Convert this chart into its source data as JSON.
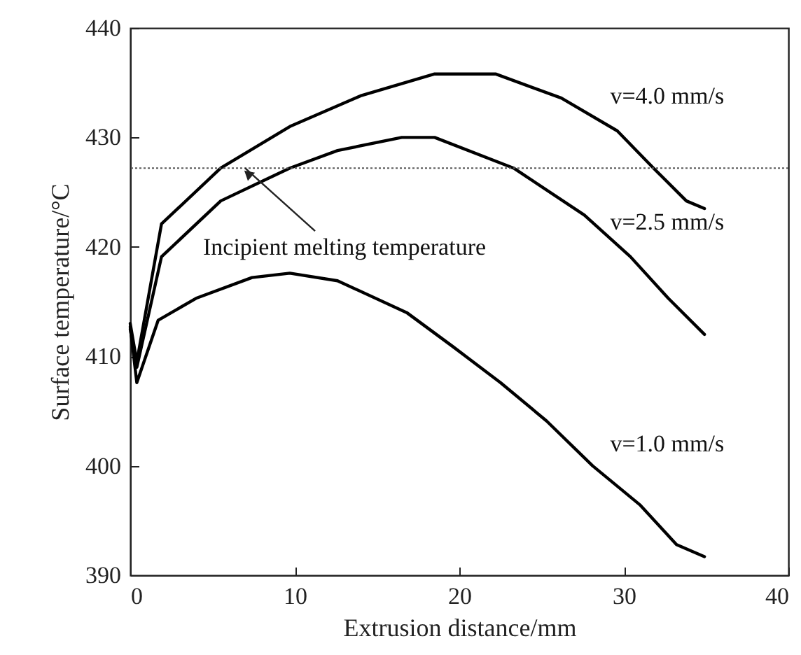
{
  "chart_data": {
    "type": "line",
    "xlabel": "Extrusion distance/mm",
    "ylabel": "Surface temperature/°C",
    "xlim": [
      0,
      40
    ],
    "xticks": [
      0,
      10,
      20,
      30,
      40
    ],
    "ylim": [
      390,
      440
    ],
    "yticks": [
      390,
      400,
      410,
      420,
      430,
      440
    ],
    "grid": false,
    "marker": "none",
    "line_style": "solid",
    "ref_lines": [
      {
        "axis": "y",
        "value": 427.2,
        "label": "Incipient melting temperature",
        "line_style": "dotted",
        "color": "#555555"
      }
    ],
    "series": [
      {
        "name": "v=4.0 mm/s",
        "color": "#000000",
        "x": [
          0,
          0.4,
          1.9,
          5.5,
          9.7,
          14,
          18.5,
          22.2,
          26.2,
          29.6,
          31.8,
          33.8,
          34.9
        ],
        "values": [
          413,
          409.5,
          422.1,
          427.2,
          431,
          433.8,
          435.8,
          435.8,
          433.6,
          430.6,
          427.2,
          424.2,
          423.5
        ]
      },
      {
        "name": "v=2.5 mm/s",
        "color": "#000000",
        "x": [
          0,
          0.4,
          1.9,
          5.5,
          9.7,
          12.6,
          16.5,
          18.5,
          23.3,
          27.6,
          30.4,
          32.7,
          34.9
        ],
        "values": [
          412.5,
          409,
          419.1,
          424.2,
          427.2,
          428.8,
          430,
          430,
          427.2,
          422.9,
          419.1,
          415.3,
          412
        ]
      },
      {
        "name": "v=1.0 mm/s",
        "color": "#000000",
        "x": [
          0,
          0.4,
          1.7,
          4,
          7.4,
          9.7,
          12.6,
          16.8,
          19.6,
          22.5,
          25.3,
          28.1,
          31,
          33.2,
          34.9
        ],
        "values": [
          412.7,
          407.6,
          413.3,
          415.3,
          417.2,
          417.6,
          416.9,
          414,
          410.9,
          407.6,
          404.1,
          400,
          396.4,
          392.8,
          391.7
        ]
      }
    ]
  }
}
